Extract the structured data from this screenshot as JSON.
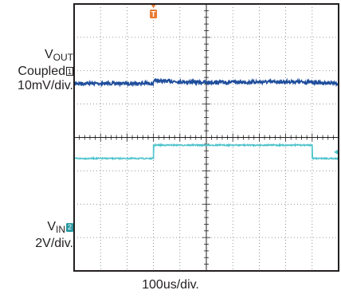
{
  "chart_data": {
    "type": "line",
    "title": "",
    "x_axis": {
      "label": "100us/div.",
      "divisions": 10
    },
    "y_axis": {
      "divisions": 8
    },
    "grid": true,
    "trigger_marker": {
      "label": "T",
      "color": "#e8792e",
      "x_div": 3.0
    },
    "channels": [
      {
        "id": "1",
        "name_main": "V",
        "name_sub": "OUT",
        "coupling": "Coupled",
        "scale": "10mV/div.",
        "color": "#1f4e9c",
        "marker_label": "1",
        "points": [
          [
            0,
            2.38
          ],
          [
            3.0,
            2.38
          ],
          [
            3.05,
            2.3
          ],
          [
            5.0,
            2.35
          ],
          [
            8.3,
            2.33
          ],
          [
            10,
            2.38
          ]
        ]
      },
      {
        "id": "2",
        "name_main": "V",
        "name_sub": "IN",
        "scale": "2V/div.",
        "color": "#4fc3cc",
        "marker_label": "2",
        "points": [
          [
            0,
            4.63
          ],
          [
            3.0,
            4.63
          ],
          [
            3.0,
            4.23
          ],
          [
            9.0,
            4.23
          ],
          [
            9.0,
            4.63
          ],
          [
            10,
            4.63
          ]
        ]
      }
    ]
  }
}
